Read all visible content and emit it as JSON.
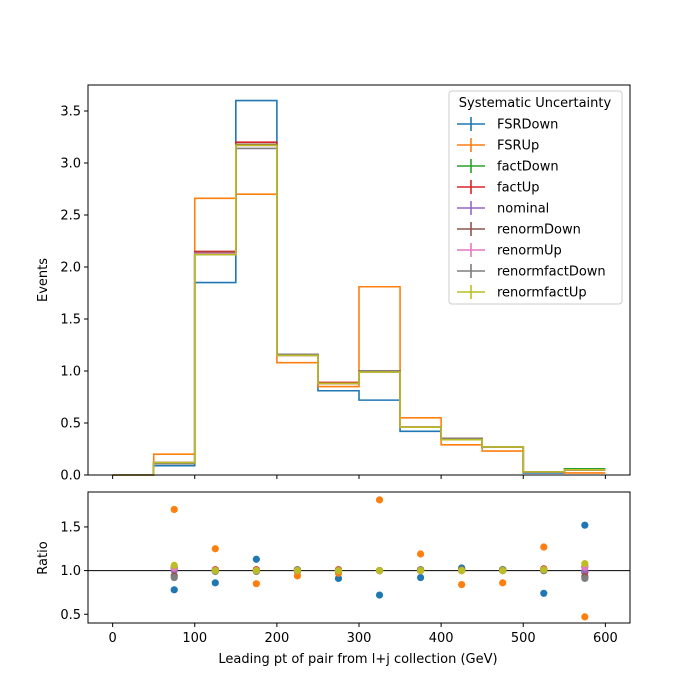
{
  "chart_data": [
    {
      "type": "step-histogram",
      "xlabel": "",
      "ylabel": "Events",
      "xlim": [
        -30,
        630
      ],
      "ylim": [
        0,
        3.75
      ],
      "yticks": [
        0.0,
        0.5,
        1.0,
        1.5,
        2.0,
        2.5,
        3.0,
        3.5
      ],
      "ytick_labels": [
        "0.0",
        "0.5",
        "1.0",
        "1.5",
        "2.0",
        "2.5",
        "3.0",
        "3.5"
      ],
      "xticks": [
        0,
        100,
        200,
        300,
        400,
        500,
        600
      ],
      "bin_edges": [
        0,
        50,
        100,
        150,
        200,
        250,
        300,
        350,
        400,
        450,
        500,
        550,
        600
      ],
      "legend": {
        "title": "Systematic Uncertainty",
        "placement": "upper right"
      },
      "series": [
        {
          "name": "FSRDown",
          "color": "#1f77b4",
          "values": [
            0.0,
            0.09,
            1.85,
            3.6,
            1.16,
            0.81,
            0.72,
            0.42,
            0.35,
            0.27,
            0.02,
            0.05
          ]
        },
        {
          "name": "FSRUp",
          "color": "#ff7f0e",
          "values": [
            0.0,
            0.2,
            2.66,
            2.7,
            1.08,
            0.85,
            1.81,
            0.55,
            0.29,
            0.23,
            0.03,
            0.02
          ]
        },
        {
          "name": "factDown",
          "color": "#2ca02c",
          "values": [
            0.0,
            0.12,
            2.14,
            3.18,
            1.16,
            0.88,
            1.0,
            0.46,
            0.35,
            0.27,
            0.03,
            0.06
          ]
        },
        {
          "name": "factUp",
          "color": "#d62728",
          "values": [
            0.0,
            0.12,
            2.15,
            3.2,
            1.16,
            0.89,
            1.0,
            0.46,
            0.35,
            0.27,
            0.03,
            0.05
          ]
        },
        {
          "name": "nominal",
          "color": "#9467bd",
          "values": [
            0.0,
            0.12,
            2.13,
            3.17,
            1.15,
            0.88,
            0.99,
            0.46,
            0.34,
            0.27,
            0.03,
            0.05
          ]
        },
        {
          "name": "renormDown",
          "color": "#8c564b",
          "values": [
            0.0,
            0.11,
            2.14,
            3.18,
            1.16,
            0.88,
            1.0,
            0.46,
            0.35,
            0.27,
            0.03,
            0.05
          ]
        },
        {
          "name": "renormUp",
          "color": "#e377c2",
          "values": [
            0.0,
            0.12,
            2.13,
            3.17,
            1.15,
            0.88,
            0.99,
            0.46,
            0.34,
            0.27,
            0.03,
            0.05
          ]
        },
        {
          "name": "renormfactDown",
          "color": "#7f7f7f",
          "values": [
            0.0,
            0.11,
            2.12,
            3.14,
            1.16,
            0.88,
            1.0,
            0.46,
            0.35,
            0.27,
            0.03,
            0.05
          ]
        },
        {
          "name": "renormfactUp",
          "color": "#bcbd22",
          "values": [
            0.0,
            0.12,
            2.12,
            3.17,
            1.15,
            0.88,
            0.99,
            0.46,
            0.34,
            0.27,
            0.03,
            0.05
          ]
        }
      ]
    },
    {
      "type": "scatter",
      "xlabel": "Leading pt of pair from l+j collection (GeV)",
      "ylabel": "Ratio",
      "xlim": [
        -30,
        630
      ],
      "ylim": [
        0.4,
        1.9
      ],
      "yticks": [
        0.5,
        1.0,
        1.5
      ],
      "ytick_labels": [
        "0.5",
        "1.0",
        "1.5"
      ],
      "xticks": [
        0,
        100,
        200,
        300,
        400,
        500,
        600
      ],
      "xtick_labels": [
        "0",
        "100",
        "200",
        "300",
        "400",
        "500",
        "600"
      ],
      "reference_line": 1.0,
      "x": [
        75,
        125,
        175,
        225,
        275,
        325,
        375,
        425,
        475,
        525,
        575
      ],
      "series": [
        {
          "name": "FSRDown",
          "color": "#1f77b4",
          "values": [
            0.78,
            0.86,
            1.13,
            0.99,
            0.91,
            0.72,
            0.92,
            1.03,
            1.01,
            0.74,
            1.52
          ]
        },
        {
          "name": "FSRUp",
          "color": "#ff7f0e",
          "values": [
            1.7,
            1.25,
            0.85,
            0.94,
            0.97,
            1.81,
            1.19,
            0.84,
            0.86,
            1.27,
            0.47
          ]
        },
        {
          "name": "factDown",
          "color": "#2ca02c",
          "values": [
            1.02,
            1.0,
            1.0,
            1.0,
            1.0,
            1.0,
            1.0,
            1.01,
            1.01,
            1.01,
            1.05
          ]
        },
        {
          "name": "factUp",
          "color": "#d62728",
          "values": [
            1.04,
            1.01,
            1.01,
            1.0,
            1.01,
            1.0,
            1.01,
            1.0,
            1.0,
            1.02,
            0.98
          ]
        },
        {
          "name": "nominal",
          "color": "#9467bd",
          "values": [
            1.0,
            1.0,
            1.0,
            1.0,
            1.0,
            1.0,
            1.0,
            1.0,
            1.0,
            1.0,
            1.0
          ]
        },
        {
          "name": "renormDown",
          "color": "#8c564b",
          "values": [
            0.94,
            1.0,
            1.0,
            1.01,
            1.0,
            1.0,
            1.0,
            1.01,
            1.01,
            1.0,
            0.93
          ]
        },
        {
          "name": "renormUp",
          "color": "#e377c2",
          "values": [
            1.03,
            1.0,
            1.0,
            1.0,
            1.0,
            1.0,
            1.0,
            1.0,
            1.0,
            1.01,
            1.04
          ]
        },
        {
          "name": "renormfactDown",
          "color": "#7f7f7f",
          "values": [
            0.92,
            0.99,
            0.99,
            1.01,
            1.0,
            1.0,
            1.01,
            1.01,
            1.01,
            1.0,
            0.91
          ]
        },
        {
          "name": "renormfactUp",
          "color": "#bcbd22",
          "values": [
            1.06,
            1.0,
            1.0,
            1.0,
            1.0,
            1.0,
            1.0,
            1.0,
            1.0,
            1.01,
            1.08
          ]
        }
      ]
    }
  ]
}
